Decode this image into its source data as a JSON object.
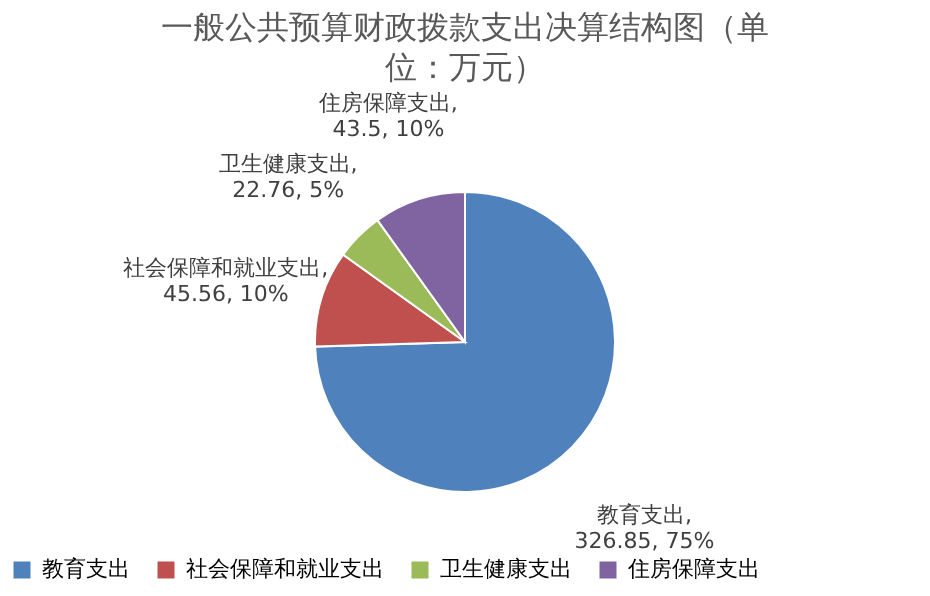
{
  "chart_data": {
    "type": "pie",
    "title": "一般公共预算财政拨款支出决算结构图（单位：万元）",
    "categories": [
      "教育支出",
      "社会保障和就业支出",
      "卫生健康支出",
      "住房保障支出"
    ],
    "values": [
      326.85,
      45.56,
      22.76,
      43.5
    ],
    "colors": [
      "#4f81bd",
      "#c0504d",
      "#9bbb59",
      "#8064a2"
    ],
    "value_labels": [
      "教育支出, 326.85, 75%",
      "社会保障和就业支出, 45.56, 10%",
      "卫生健康支出, 22.76, 5%",
      "住房保障支出, 43.5, 10%"
    ],
    "legend": "bottom"
  }
}
